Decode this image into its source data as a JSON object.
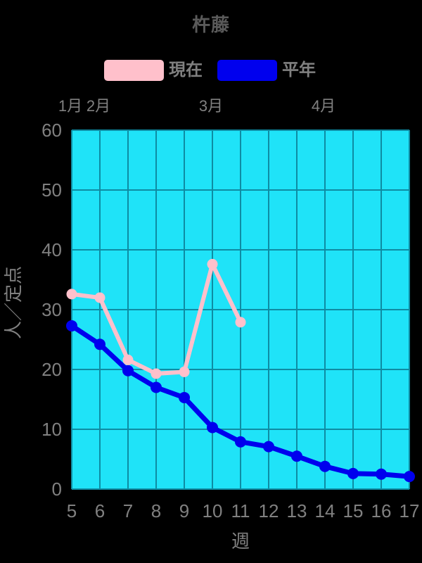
{
  "title": "杵藤",
  "legend": [
    {
      "label": "現在",
      "color": "#ffc0cb"
    },
    {
      "label": "平年",
      "color": "#0000ee"
    }
  ],
  "colors": {
    "page_background": "#000000",
    "plot_background": "#1fe3f8",
    "grid_line": "#0e8ca3",
    "tick_text": "#808080",
    "title_text": "#5a5a5a",
    "series_current": "#ffc0cb",
    "series_normal": "#0000ee"
  },
  "chart_data": {
    "type": "line",
    "title": "杵藤",
    "xlabel": "週",
    "ylabel": "人／定点",
    "xlim": [
      5,
      17
    ],
    "ylim": [
      0,
      60
    ],
    "x_ticks": [
      5,
      6,
      7,
      8,
      9,
      10,
      11,
      12,
      13,
      14,
      15,
      16,
      17
    ],
    "y_ticks": [
      0,
      10,
      20,
      30,
      40,
      50,
      60
    ],
    "grid": true,
    "legend_position": "top",
    "month_labels": [
      {
        "label": "1月",
        "week": 5
      },
      {
        "label": "2月",
        "week": 6
      },
      {
        "label": "3月",
        "week": 10
      },
      {
        "label": "4月",
        "week": 14
      }
    ],
    "series": [
      {
        "name": "平年",
        "color": "#0000ee",
        "line_width": 7,
        "marker_radius": 8,
        "x": [
          5,
          6,
          7,
          8,
          9,
          10,
          11,
          12,
          13,
          14,
          15,
          16,
          17
        ],
        "y": [
          27.3,
          24.2,
          19.8,
          17.0,
          15.3,
          10.3,
          7.9,
          7.1,
          5.5,
          3.8,
          2.6,
          2.5,
          2.1
        ]
      },
      {
        "name": "現在",
        "color": "#ffc0cb",
        "line_width": 6,
        "marker_radius": 7.5,
        "x": [
          5,
          6,
          7,
          8,
          9,
          10,
          11
        ],
        "y": [
          32.6,
          32.0,
          21.6,
          19.3,
          19.6,
          37.6,
          27.9
        ]
      }
    ]
  }
}
